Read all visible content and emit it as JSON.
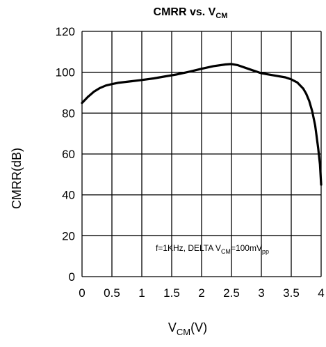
{
  "chart_data": {
    "type": "line",
    "title": {
      "main": "CMRR vs. V",
      "sub": "CM"
    },
    "xlabel": {
      "main": "V",
      "sub": "CM",
      "suffix": "(V)"
    },
    "ylabel": "CMRR(dB)",
    "xlim": [
      0,
      4
    ],
    "ylim": [
      0,
      120
    ],
    "x_ticks": [
      "0",
      "0.5",
      "1",
      "1.5",
      "2",
      "2.5",
      "3",
      "3.5",
      "4"
    ],
    "y_ticks": [
      "0",
      "20",
      "40",
      "60",
      "80",
      "100",
      "120"
    ],
    "grid": true,
    "annotation": {
      "prefix": "f=1KHz, DELTA V",
      "sub1": "CM",
      "mid": "=100mV",
      "sub2": "pp"
    },
    "series": [
      {
        "x": [
          0,
          0.1,
          0.2,
          0.3,
          0.4,
          0.5,
          0.6,
          0.8,
          1.0,
          1.2,
          1.4,
          1.6,
          1.8,
          2.0,
          2.2,
          2.4,
          2.5,
          2.6,
          2.8,
          3.0,
          3.2,
          3.4,
          3.5,
          3.6,
          3.7,
          3.75,
          3.8,
          3.85,
          3.9,
          3.95,
          3.98,
          4.0
        ],
        "y": [
          85,
          88,
          90.5,
          92.3,
          93.5,
          94.2,
          94.8,
          95.5,
          96.2,
          97,
          98,
          99,
          100.3,
          101.7,
          103,
          103.8,
          104,
          103.5,
          101.5,
          99.5,
          98.5,
          97.5,
          96.5,
          95,
          92,
          89.5,
          86,
          81,
          74,
          63,
          55,
          45
        ]
      }
    ]
  }
}
